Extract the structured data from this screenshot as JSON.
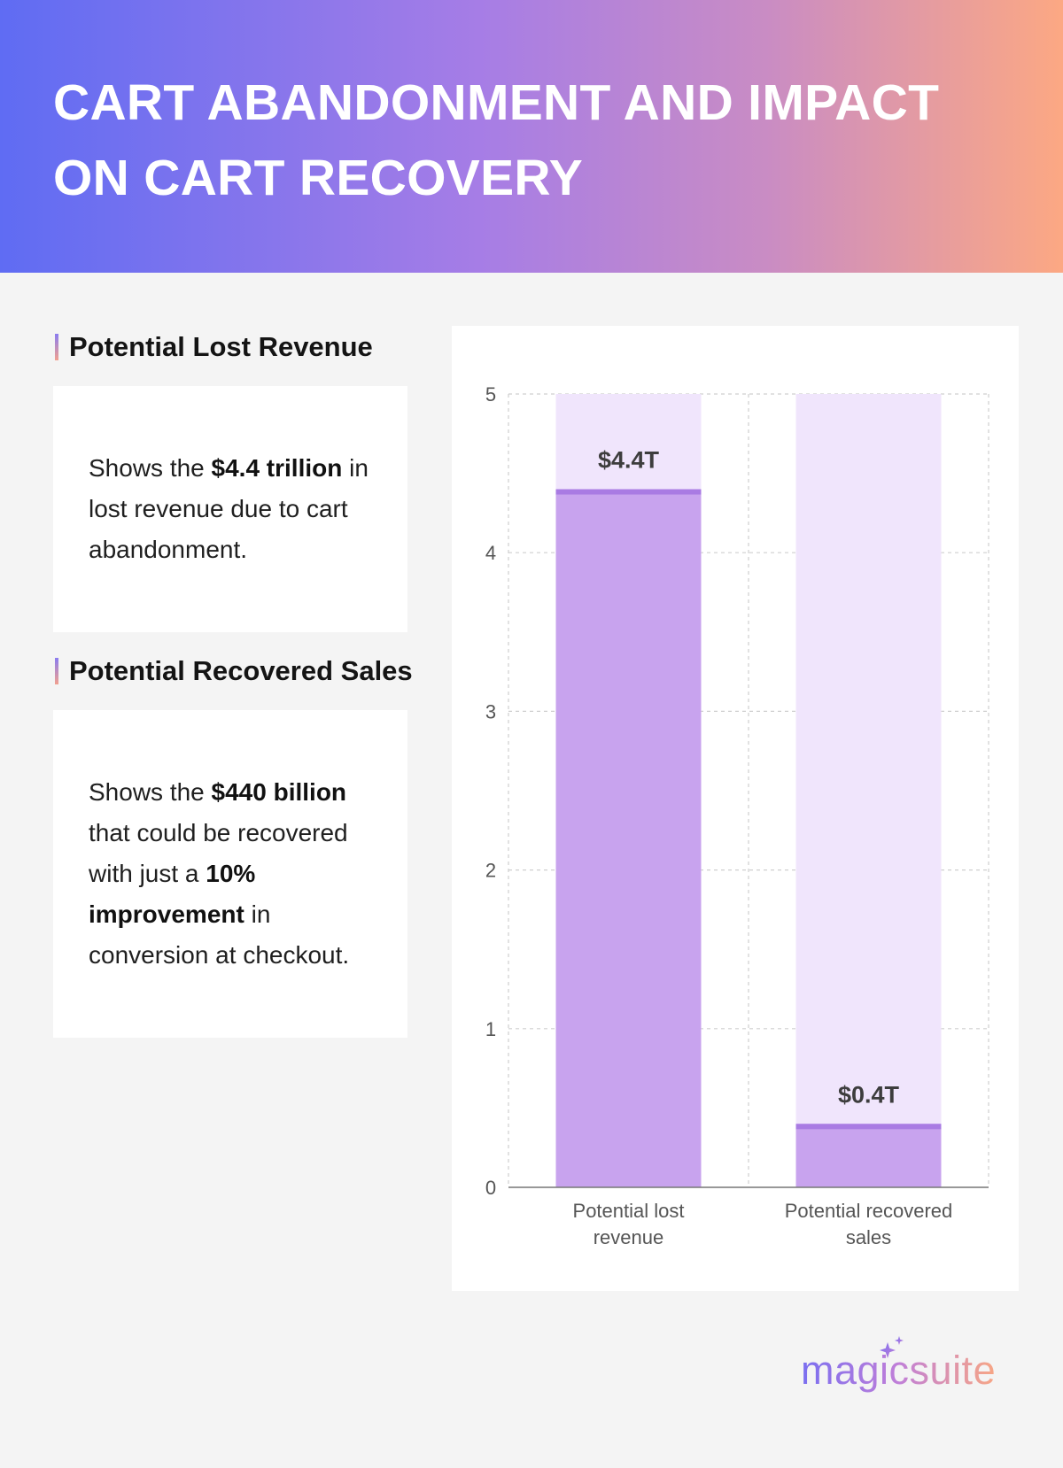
{
  "header": {
    "title": "CART ABANDONMENT AND IMPACT ON CART RECOVERY"
  },
  "sections": [
    {
      "heading": "Potential Lost Revenue",
      "body": [
        {
          "text": "Shows the ",
          "bold": false
        },
        {
          "text": "$4.4 trillion",
          "bold": true
        },
        {
          "text": " in lost revenue due to cart abandonment.",
          "bold": false
        }
      ]
    },
    {
      "heading": "Potential Recovered Sales",
      "body": [
        {
          "text": "Shows the ",
          "bold": false
        },
        {
          "text": "$440 billion",
          "bold": true
        },
        {
          "text": " that could be recovered with just a ",
          "bold": false
        },
        {
          "text": "10% improvement",
          "bold": true
        },
        {
          "text": " in conversion at checkout.",
          "bold": false
        }
      ]
    }
  ],
  "colors": {
    "bar_value": "#c8a3ee",
    "bar_value_cap": "#a97be3",
    "bar_background": "#f0e5fc",
    "grid": "#cfcfcf",
    "axis": "#777777",
    "data_label": "#3d3d3d",
    "tick_label": "#555555"
  },
  "chart_data": {
    "type": "bar",
    "categories": [
      "Potential lost revenue",
      "Potential recovered sales"
    ],
    "values": [
      4.4,
      0.4
    ],
    "data_labels": [
      "$4.4T",
      "$0.4T"
    ],
    "ylim": [
      0,
      5
    ],
    "yticks": [
      0,
      1,
      2,
      3,
      4,
      5
    ],
    "title": "",
    "xlabel": "",
    "ylabel": "",
    "grid": true,
    "legend": "none"
  },
  "logo": {
    "text": "magicsuite"
  }
}
